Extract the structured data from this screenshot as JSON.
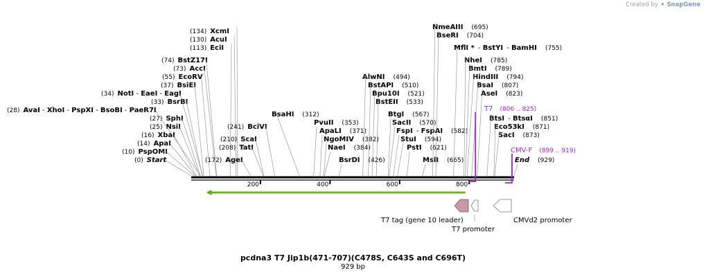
{
  "app": {
    "created_by": "Created by",
    "brand": "SnapGene"
  },
  "title": "pcdna3 T7 Jip1b(471-707)(C478S, C643S and C696T)",
  "length": "929 bp",
  "ruler": {
    "start": 1,
    "end": 929,
    "ticks": [
      200,
      400,
      600,
      800
    ]
  },
  "colors": {
    "primer": "#a020d0",
    "arrow_fill": "#c898a8",
    "orf": "#66aa22",
    "orf_light": "#bde08c"
  },
  "sites": [
    {
      "pos": "(0)",
      "label": "Start",
      "italic": true,
      "at": 1
    },
    {
      "pos": "(10)",
      "label": "PspOMI",
      "at": 10
    },
    {
      "pos": "(14)",
      "label": "ApaI",
      "at": 14
    },
    {
      "pos": "(16)",
      "label": "XbaI",
      "at": 16
    },
    {
      "pos": "(25)",
      "label": "NsiI",
      "at": 25
    },
    {
      "pos": "(27)",
      "label": "SphI",
      "at": 27
    },
    {
      "pos": "(28)",
      "label": "AvaI",
      "extra": [
        "XhoI",
        "PspXI",
        "BsoBI",
        "PaeR7I"
      ],
      "at": 28
    },
    {
      "pos": "(33)",
      "label": "BsrBI",
      "at": 33
    },
    {
      "pos": "(34)",
      "label": "NotI",
      "extra": [
        "EaeI",
        "EagI"
      ],
      "at": 34
    },
    {
      "pos": "(37)",
      "label": "BsiEI",
      "at": 37
    },
    {
      "pos": "(55)",
      "label": "EcoRV",
      "at": 55
    },
    {
      "pos": "(73)",
      "label": "AccI",
      "at": 73
    },
    {
      "pos": "(74)",
      "label": "BstZ17I",
      "at": 74
    },
    {
      "pos": "(113)",
      "label": "EciI",
      "at": 113
    },
    {
      "pos": "(130)",
      "label": "AcuI",
      "at": 130
    },
    {
      "pos": "(134)",
      "label": "XcmI",
      "at": 134
    },
    {
      "pos": "(172)",
      "label": "AgeI",
      "at": 172
    },
    {
      "pos": "(208)",
      "label": "TatI",
      "at": 208
    },
    {
      "pos": "(210)",
      "label": "ScaI",
      "at": 210
    },
    {
      "pos": "(241)",
      "label": "BciVI",
      "at": 241
    },
    {
      "pos": "(312)",
      "label": "BsaHI",
      "at": 312
    },
    {
      "pos": "(353)",
      "label": "PvuII",
      "at": 353
    },
    {
      "pos": "(371)",
      "label": "ApaLI",
      "at": 371
    },
    {
      "pos": "(382)",
      "label": "NgoMIV",
      "at": 382
    },
    {
      "pos": "(384)",
      "label": "NaeI",
      "at": 384
    },
    {
      "pos": "(426)",
      "label": "BsrDI",
      "at": 426
    },
    {
      "pos": "(494)",
      "label": "AlwNI",
      "at": 494
    },
    {
      "pos": "(510)",
      "label": "BstAPI",
      "at": 510
    },
    {
      "pos": "(521)",
      "label": "Bpu10I",
      "at": 521
    },
    {
      "pos": "(533)",
      "label": "BstEII",
      "at": 533
    },
    {
      "pos": "(567)",
      "label": "BtgI",
      "at": 567
    },
    {
      "pos": "(570)",
      "label": "SacII",
      "at": 570
    },
    {
      "pos": "(582)",
      "label": "FspI",
      "extra": [
        "FspAI"
      ],
      "at": 582
    },
    {
      "pos": "(594)",
      "label": "StuI",
      "at": 594
    },
    {
      "pos": "(621)",
      "label": "PstI",
      "at": 621
    },
    {
      "pos": "(665)",
      "label": "MslI",
      "at": 665
    },
    {
      "pos": "(695)",
      "label": "NmeAIII",
      "at": 695
    },
    {
      "pos": "(704)",
      "label": "BseRI",
      "at": 704
    },
    {
      "pos": "(755)",
      "label": "MflI *",
      "extra": [
        "BstYI",
        "BamHI"
      ],
      "at": 755
    },
    {
      "pos": "(785)",
      "label": "NheI",
      "at": 785
    },
    {
      "pos": "(789)",
      "label": "BmtI",
      "at": 789
    },
    {
      "pos": "(794)",
      "label": "HindIII",
      "at": 794
    },
    {
      "pos": "(807)",
      "label": "BsaI",
      "at": 807
    },
    {
      "pos": "(823)",
      "label": "AseI",
      "at": 823
    },
    {
      "pos": "(851)",
      "label": "BtsI",
      "extra": [
        "BtsαI"
      ],
      "at": 851
    },
    {
      "pos": "(871)",
      "label": "Eco53kI",
      "at": 871
    },
    {
      "pos": "(873)",
      "label": "SacI",
      "at": 873
    },
    {
      "pos": "(929)",
      "label": "End",
      "italic": true,
      "at": 929
    }
  ],
  "primers": [
    {
      "name": "T7",
      "range": "(806 .. 825)",
      "from": 806,
      "to": 825
    },
    {
      "name": "CMV-F",
      "range": "(899 .. 919)",
      "from": 899,
      "to": 919
    }
  ],
  "features": {
    "orf": {
      "from": 44,
      "to": 789,
      "direction": "reverse"
    },
    "t7_tag": "T7 tag (gene 10 leader)",
    "t7_promoter": "T7 promoter",
    "cmv_promoter": "CMVd2 promoter"
  }
}
